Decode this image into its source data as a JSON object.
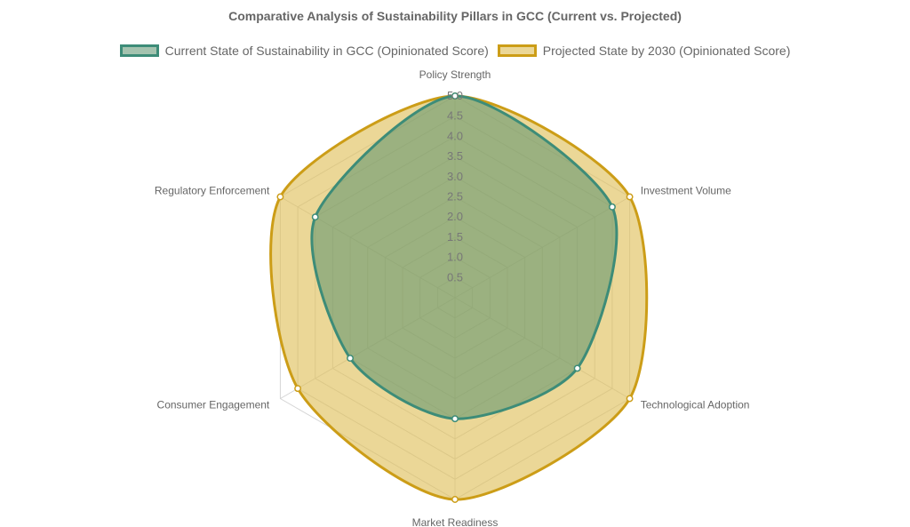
{
  "chart_data": {
    "type": "radar",
    "title": "Comparative Analysis of Sustainability Pillars in GCC (Current vs. Projected)",
    "categories": [
      "Policy Strength",
      "Investment Volume",
      "Technological Adoption",
      "Market Readiness",
      "Consumer Engagement",
      "Regulatory Enforcement"
    ],
    "rlim": [
      0,
      5
    ],
    "ticks": [
      "0.5",
      "1.0",
      "1.5",
      "2.0",
      "2.5",
      "3.0",
      "3.5",
      "4.0",
      "4.5",
      "5.0"
    ],
    "legend_position": "top",
    "series": [
      {
        "name": "Current State of Sustainability in GCC (Opinionated Score)",
        "values": [
          5.0,
          4.5,
          3.5,
          3.0,
          3.0,
          4.0
        ],
        "border_color": "#3d8c78",
        "fill_color": "rgba(90,145,110,0.55)"
      },
      {
        "name": "Projected State by 2030 (Opinionated Score)",
        "values": [
          5.0,
          5.0,
          5.0,
          5.0,
          4.5,
          5.0
        ],
        "border_color": "#cc9d17",
        "fill_color": "rgba(224,193,95,0.65)"
      }
    ]
  }
}
